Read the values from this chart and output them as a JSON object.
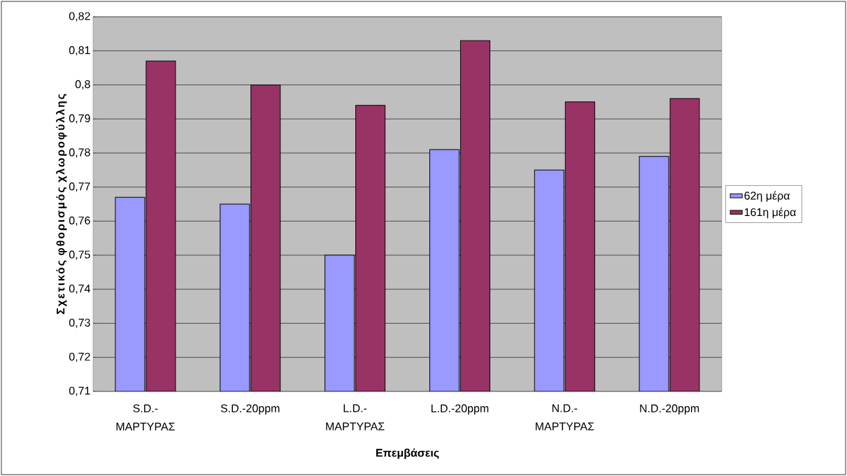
{
  "chart_data": {
    "type": "bar",
    "xlabel": "Επεμβάσεις",
    "ylabel": "Σχετικός φθορισμός χλωροφύλλης",
    "categories": [
      "S.D.- ΜΑΡΤΥΡΑΣ",
      "S.D.-20ppm",
      "L.D.- ΜΑΡΤΥΡΑΣ",
      "L.D.-20ppm",
      "N.D.- ΜΑΡΤΥΡΑΣ",
      "N.D.-20ppm"
    ],
    "series": [
      {
        "name": "62η μέρα",
        "color": "#9999ff",
        "values": [
          0.767,
          0.765,
          0.75,
          0.781,
          0.775,
          0.779
        ]
      },
      {
        "name": "161η μέρα",
        "color": "#993366",
        "values": [
          0.807,
          0.8,
          0.794,
          0.813,
          0.795,
          0.796
        ]
      }
    ],
    "ylim": [
      0.71,
      0.82
    ],
    "yticks": [
      {
        "value": 0.71,
        "label": "0,71"
      },
      {
        "value": 0.72,
        "label": "0,72"
      },
      {
        "value": 0.73,
        "label": "0,73"
      },
      {
        "value": 0.74,
        "label": "0,74"
      },
      {
        "value": 0.75,
        "label": "0,75"
      },
      {
        "value": 0.76,
        "label": "0,76"
      },
      {
        "value": 0.77,
        "label": "0,77"
      },
      {
        "value": 0.78,
        "label": "0,78"
      },
      {
        "value": 0.79,
        "label": "0,79"
      },
      {
        "value": 0.8,
        "label": "0,8"
      },
      {
        "value": 0.81,
        "label": "0,81"
      },
      {
        "value": 0.82,
        "label": "0,82"
      }
    ],
    "grid": "y",
    "legend": "right"
  }
}
